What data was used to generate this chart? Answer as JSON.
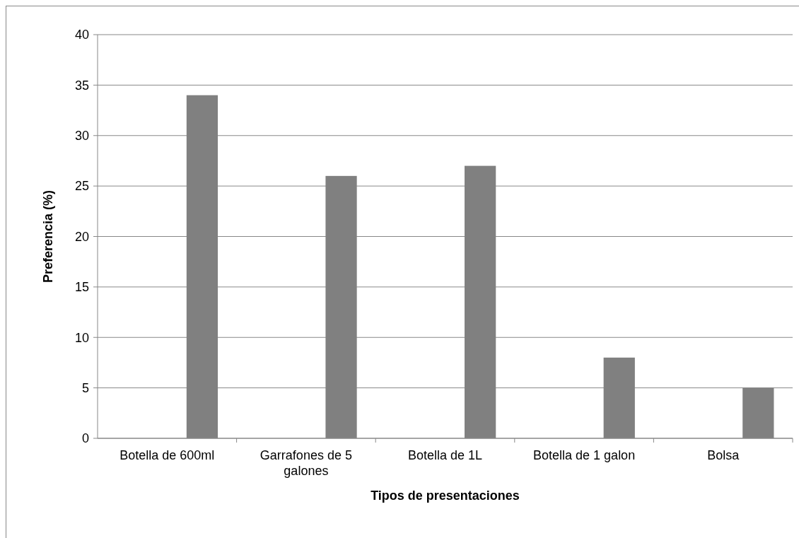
{
  "chart_data": {
    "type": "bar",
    "xlabel": "Tipos de presentaciones",
    "ylabel": "Preferencia (%)",
    "categories": [
      "Botella de 600ml",
      "Garrafones de 5 galones",
      "Botella de 1L",
      "Botella de 1 galon",
      "Bolsa"
    ],
    "values": [
      34,
      26,
      27,
      8,
      5
    ],
    "color": "#808080",
    "ylim": [
      0,
      40
    ],
    "yticks": [
      0,
      5,
      10,
      15,
      20,
      25,
      30,
      35,
      40
    ],
    "grid": "y"
  }
}
